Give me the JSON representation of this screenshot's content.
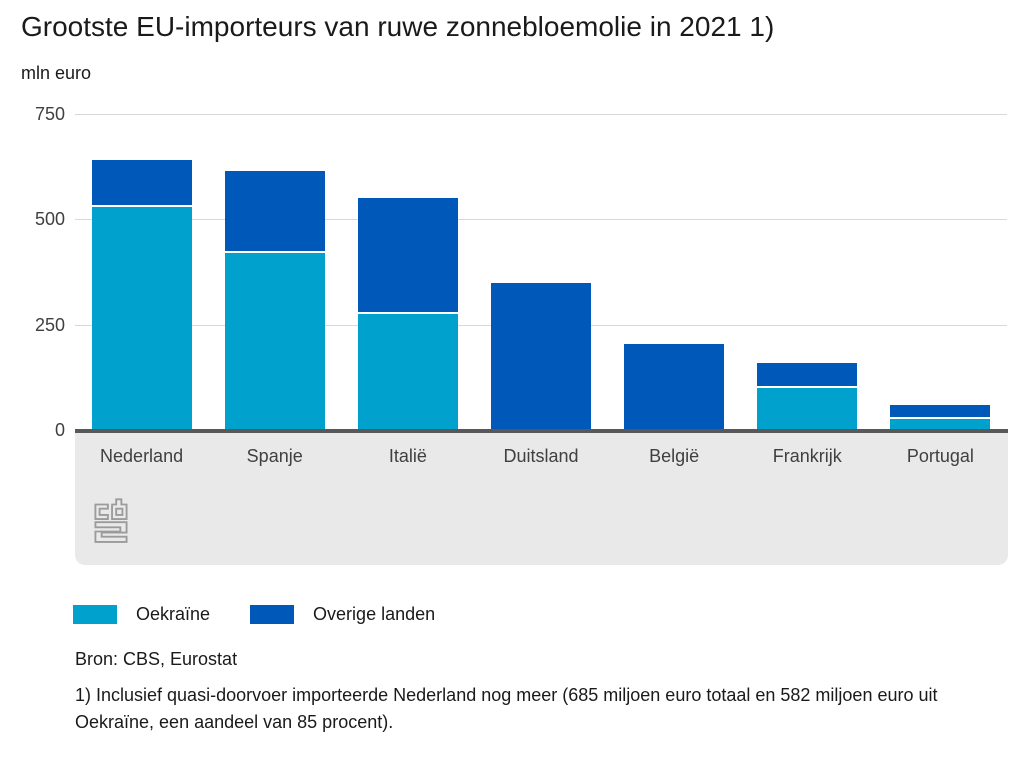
{
  "title": "Grootste EU-importeurs van ruwe zonnebloemolie in 2021 1)",
  "unit": "mln euro",
  "source": "Bron: CBS, Eurostat",
  "footnote": "1) Inclusief quasi-doorvoer importeerde Nederland nog meer (685 miljoen euro totaal en 582 miljoen euro uit Oekraïne, een aandeel van 85 procent).",
  "logo_name": "cbs-logo",
  "colors": {
    "oekraine": "#00a1cd",
    "overige_landen": "#0058b8",
    "gridline": "#d9d9d9",
    "axis_line": "#58585a",
    "axis_band": "#e9e9e9",
    "logo_gray": "#9b9b9b"
  },
  "chart_data": {
    "type": "bar",
    "stacked": true,
    "title": "Grootste EU-importeurs van ruwe zonnebloemolie in 2021 1)",
    "ylabel": "mln euro",
    "xlabel": "",
    "ylim": [
      0,
      750
    ],
    "yticks": [
      750,
      500,
      250,
      0
    ],
    "grid": true,
    "legend_position": "bottom",
    "categories": [
      "Nederland",
      "Spanje",
      "Italië",
      "Duitsland",
      "België",
      "Frankrijk",
      "Portugal"
    ],
    "series": [
      {
        "name": "Oekraïne",
        "color": "#00a1cd",
        "values": [
          535,
          425,
          280,
          0,
          0,
          105,
          30
        ]
      },
      {
        "name": "Overige landen",
        "color": "#0058b8",
        "values": [
          105,
          190,
          270,
          350,
          205,
          55,
          30
        ]
      }
    ],
    "totals": [
      640,
      615,
      550,
      350,
      205,
      160,
      60
    ]
  }
}
